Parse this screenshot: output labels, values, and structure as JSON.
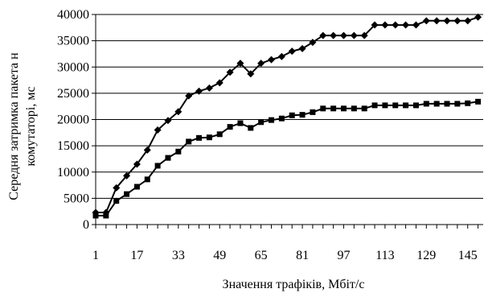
{
  "chart_data": {
    "type": "line",
    "xlabel": "Значення трафіків, Мбіт/с",
    "ylabel_line1": "Середня затримка пакета н",
    "ylabel_line2": "комутаторі, мс",
    "ylim": [
      0,
      40000
    ],
    "yticks": [
      "0",
      "5000",
      "10000",
      "15000",
      "20000",
      "25000",
      "30000",
      "35000",
      "40000"
    ],
    "xlim": [
      1,
      151
    ],
    "xticks": [
      "1",
      "17",
      "33",
      "49",
      "65",
      "81",
      "97",
      "113",
      "129",
      "145"
    ],
    "grid": "horizontal",
    "legend": "none",
    "series": [
      {
        "marker": "diamond",
        "color": "#000000",
        "x": [
          1,
          5,
          9,
          13,
          17,
          21,
          25,
          29,
          33,
          37,
          41,
          45,
          49,
          53,
          57,
          61,
          65,
          69,
          73,
          77,
          81,
          85,
          89,
          93,
          97,
          101,
          105,
          109,
          113,
          117,
          121,
          125,
          129,
          133,
          137,
          141,
          145,
          149
        ],
        "values": [
          2300,
          2300,
          7000,
          9300,
          11500,
          14200,
          18000,
          19800,
          21500,
          24500,
          25400,
          26000,
          27000,
          29000,
          30700,
          28700,
          30700,
          31400,
          32000,
          33000,
          33500,
          34700,
          36000,
          36000,
          36000,
          36000,
          36000,
          38000,
          38000,
          38000,
          38000,
          38000,
          38800,
          38800,
          38800,
          38800,
          38800,
          39500
        ]
      },
      {
        "marker": "square",
        "color": "#000000",
        "x": [
          1,
          5,
          9,
          13,
          17,
          21,
          25,
          29,
          33,
          37,
          41,
          45,
          49,
          53,
          57,
          61,
          65,
          69,
          73,
          77,
          81,
          85,
          89,
          93,
          97,
          101,
          105,
          109,
          113,
          117,
          121,
          125,
          129,
          133,
          137,
          141,
          145,
          149
        ],
        "values": [
          1700,
          1700,
          4500,
          5800,
          7200,
          8600,
          11200,
          12700,
          13900,
          15800,
          16500,
          16600,
          17200,
          18600,
          19300,
          18400,
          19500,
          19900,
          20200,
          20800,
          20900,
          21400,
          22100,
          22100,
          22100,
          22100,
          22100,
          22700,
          22700,
          22700,
          22700,
          22700,
          23000,
          23000,
          23000,
          23000,
          23100,
          23400
        ]
      }
    ]
  }
}
